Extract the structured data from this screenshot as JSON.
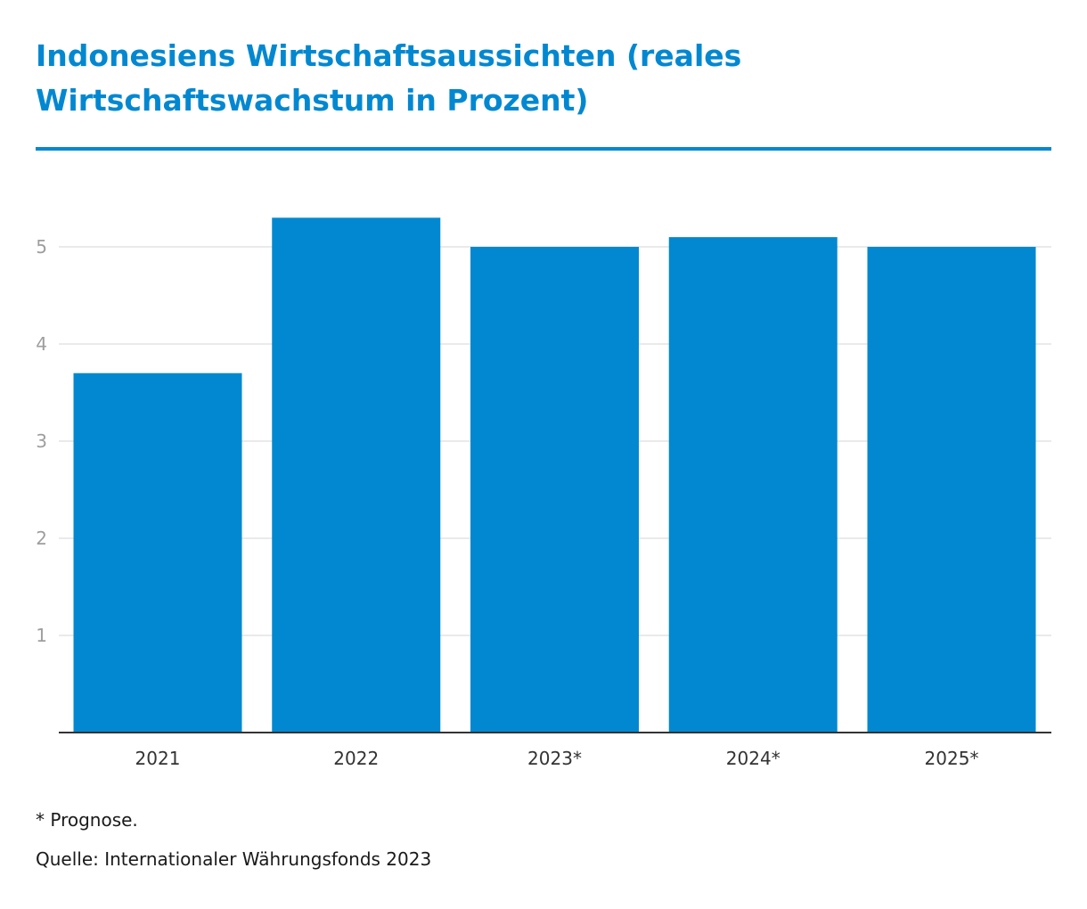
{
  "chart_data": {
    "type": "bar",
    "title": "Indonesiens Wirtschaftsaussichten (reales Wirtschaftswachstum in Prozent)",
    "categories": [
      "2021",
      "2022",
      "2023*",
      "2024*",
      "2025*"
    ],
    "values": [
      3.7,
      5.3,
      5.0,
      5.1,
      5.0
    ],
    "yticks": [
      "1",
      "2",
      "3",
      "4",
      "5"
    ],
    "ylim": [
      0,
      5.8
    ],
    "grid": true,
    "bar_color": "#0288d1",
    "footnote": "* Prognose.",
    "source": "Quelle: Internationaler Währungsfonds 2023"
  }
}
